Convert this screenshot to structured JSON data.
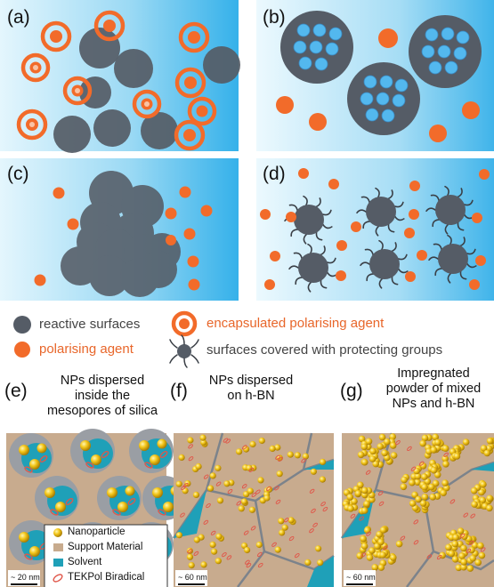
{
  "panels": {
    "a": "(a)",
    "b": "(b)",
    "c": "(c)",
    "d": "(d)",
    "e": "(e)",
    "f": "(f)",
    "g": "(g)"
  },
  "legend": {
    "reactive": "reactive surfaces",
    "polarising": "polarising agent",
    "encapsulated": "encapsulated polarising agent",
    "protected": "surfaces covered with protecting groups"
  },
  "captions": {
    "e": [
      "NPs dispersed",
      "inside the",
      "mesopores of silica"
    ],
    "f": [
      "NPs dispersed",
      "on h-BN"
    ],
    "g": [
      "Impregnated",
      "powder of mixed",
      "NPs and h-BN"
    ]
  },
  "key": {
    "nanoparticle": "Nanoparticle",
    "support": "Support Material",
    "solvent": "Solvent",
    "tekpol": "TEKPol Biradical"
  },
  "scalebars": {
    "e": "~ 20 nm",
    "f": "~ 60 nm",
    "g": "~ 60 nm"
  },
  "colors": {
    "grey": "#555c66",
    "orange": "#f26b2a",
    "blue": "#3ab4ea",
    "support": "#c8ab8e",
    "gold": "#f0c419",
    "legend_orange": "#e8662a"
  }
}
